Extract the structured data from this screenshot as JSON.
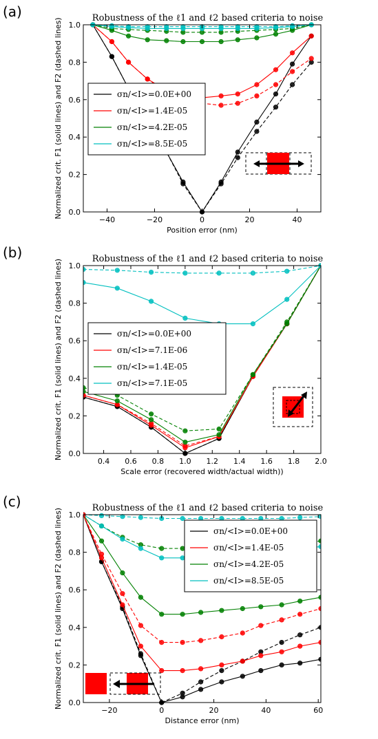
{
  "chart_data": [
    {
      "panel_label": "(a)",
      "type": "line",
      "title": "Robustness of the ℓ1 and ℓ2 based criteria to noise",
      "xlabel": "Position error (nm)",
      "ylabel": "Normalized crit. F1 (solid lines) and F2 (dashed lines)",
      "xlim": [
        -50,
        50
      ],
      "ylim": [
        0,
        1
      ],
      "xticks": [
        -40,
        -20,
        0,
        20,
        40
      ],
      "yticks": [
        0.0,
        0.2,
        0.4,
        0.6,
        0.8,
        1.0
      ],
      "legend_position": "left",
      "x": [
        -46,
        -38,
        -31,
        -23,
        -15,
        -8,
        0,
        8,
        15,
        23,
        31,
        38,
        46
      ],
      "series": [
        {
          "name": "σn/<I>=0.0E+00",
          "color": "#000000",
          "solid": [
            1.0,
            0.83,
            0.66,
            0.49,
            0.32,
            0.16,
            0.0,
            0.16,
            0.32,
            0.48,
            0.63,
            0.79,
            0.94
          ],
          "dashed": [
            1.0,
            0.83,
            0.66,
            0.49,
            0.32,
            0.15,
            0.0,
            0.15,
            0.29,
            0.43,
            0.56,
            0.68,
            0.8
          ]
        },
        {
          "name": "σn/<I>=1.4E-05",
          "color": "#ff0000",
          "solid": [
            1.0,
            0.91,
            0.8,
            0.71,
            0.65,
            0.62,
            0.61,
            0.62,
            0.63,
            0.68,
            0.76,
            0.85,
            0.94
          ],
          "dashed": [
            1.0,
            0.91,
            0.8,
            0.71,
            0.64,
            0.6,
            0.58,
            0.57,
            0.58,
            0.62,
            0.68,
            0.75,
            0.82
          ]
        },
        {
          "name": "σn/<I>=4.2E-05",
          "color": "#008000",
          "solid": [
            1.0,
            0.97,
            0.94,
            0.92,
            0.915,
            0.91,
            0.91,
            0.91,
            0.92,
            0.93,
            0.95,
            0.97,
            1.0
          ],
          "dashed": [
            1.0,
            0.98,
            0.975,
            0.97,
            0.965,
            0.96,
            0.96,
            0.96,
            0.965,
            0.97,
            0.975,
            0.98,
            1.0
          ]
        },
        {
          "name": "σn/<I>=8.5E-05",
          "color": "#00bfbf",
          "solid": [
            1.0,
            0.99,
            0.985,
            0.98,
            0.98,
            0.98,
            0.98,
            0.98,
            0.98,
            0.98,
            0.985,
            0.99,
            1.0
          ],
          "dashed": [
            1.0,
            0.995,
            0.99,
            0.99,
            0.99,
            0.99,
            0.99,
            0.99,
            0.99,
            0.99,
            0.99,
            0.995,
            1.0
          ]
        }
      ]
    },
    {
      "panel_label": "(b)",
      "type": "line",
      "title": "Robustness of the ℓ1 and ℓ2 based criteria to noise",
      "xlabel": "Scale error (recovered width/actual width))",
      "ylabel": "Normalized crit. F1 (solid lines) and F2 (dashed lines)",
      "xlim": [
        0.25,
        2.0
      ],
      "ylim": [
        0,
        1
      ],
      "xticks": [
        0.4,
        0.6,
        0.8,
        1.0,
        1.2,
        1.4,
        1.6,
        1.8,
        2.0
      ],
      "yticks": [
        0.0,
        0.2,
        0.4,
        0.6,
        0.8,
        1.0
      ],
      "legend_position": "center-left",
      "x": [
        0.25,
        0.5,
        0.75,
        1.0,
        1.25,
        1.5,
        1.75,
        2.0
      ],
      "series": [
        {
          "name": "σn/<I>=0.0E+00",
          "color": "#000000",
          "solid": [
            0.3,
            0.25,
            0.14,
            0.0,
            0.08,
            0.41,
            0.69,
            1.0
          ],
          "dashed": [
            0.3,
            0.25,
            0.14,
            0.0,
            0.08,
            0.41,
            0.69,
            1.0
          ]
        },
        {
          "name": "σn/<I>=7.1E-06",
          "color": "#ff0000",
          "solid": [
            0.31,
            0.26,
            0.15,
            0.03,
            0.09,
            0.41,
            0.69,
            1.0
          ],
          "dashed": [
            0.31,
            0.26,
            0.16,
            0.04,
            0.09,
            0.41,
            0.69,
            1.0
          ]
        },
        {
          "name": "σn/<I>=1.4E-05",
          "color": "#008000",
          "solid": [
            0.33,
            0.28,
            0.18,
            0.06,
            0.1,
            0.42,
            0.69,
            1.0
          ],
          "dashed": [
            0.35,
            0.31,
            0.21,
            0.12,
            0.13,
            0.42,
            0.7,
            1.0
          ]
        },
        {
          "name": "σn/<I>=7.1E-05",
          "color": "#00bfbf",
          "solid": [
            0.91,
            0.88,
            0.81,
            0.72,
            0.69,
            0.69,
            0.82,
            1.0
          ],
          "dashed": [
            0.98,
            0.975,
            0.965,
            0.96,
            0.96,
            0.96,
            0.97,
            1.0
          ]
        }
      ]
    },
    {
      "panel_label": "(c)",
      "type": "line",
      "title": "Robustness of the ℓ1 and ℓ2 based criteria to noise",
      "xlabel": "Distance error (nm)",
      "ylabel": "Normalized crit. F1 (solid lines) and F2 (dashed lines)",
      "xlim": [
        -30,
        61
      ],
      "ylim": [
        0,
        1
      ],
      "xticks": [
        -20,
        0,
        20,
        40,
        60
      ],
      "yticks": [
        0.0,
        0.2,
        0.4,
        0.6,
        0.8,
        1.0
      ],
      "legend_position": "upper-right",
      "x": [
        -30,
        -23,
        -15,
        -8,
        0,
        8,
        15,
        23,
        31,
        38,
        46,
        53,
        61
      ],
      "series": [
        {
          "name": "σn/<I>=0.0E+00",
          "color": "#000000",
          "solid": [
            1.0,
            0.75,
            0.5,
            0.25,
            0.0,
            0.03,
            0.07,
            0.11,
            0.14,
            0.17,
            0.2,
            0.21,
            0.23
          ],
          "dashed": [
            1.0,
            0.75,
            0.51,
            0.26,
            0.0,
            0.05,
            0.11,
            0.17,
            0.22,
            0.27,
            0.32,
            0.36,
            0.4
          ]
        },
        {
          "name": "σn/<I>=1.4E-05",
          "color": "#ff0000",
          "solid": [
            1.0,
            0.77,
            0.52,
            0.3,
            0.17,
            0.17,
            0.18,
            0.2,
            0.22,
            0.25,
            0.27,
            0.3,
            0.32
          ]
        },
        {
          "name": "σn/<I>=4.2E-05",
          "color": "#008000",
          "solid": [
            1.0,
            0.86,
            0.69,
            0.56,
            0.47,
            0.47,
            0.48,
            0.49,
            0.5,
            0.51,
            0.52,
            0.54,
            0.56
          ],
          "dashed": [
            1.0,
            0.94,
            0.88,
            0.84,
            0.82,
            0.82,
            0.82,
            0.82,
            0.83,
            0.83,
            0.84,
            0.85,
            0.86
          ]
        },
        {
          "name": "σn/<I>=8.5E-05",
          "color": "#00bfbf",
          "solid": [
            1.0,
            0.94,
            0.87,
            0.82,
            0.77,
            0.77,
            0.78,
            0.79,
            0.8,
            0.8,
            0.81,
            0.82,
            0.83
          ],
          "dashed": [
            1.0,
            0.995,
            0.99,
            0.985,
            0.98,
            0.98,
            0.98,
            0.98,
            0.98,
            0.98,
            0.98,
            0.985,
            0.99
          ]
        },
        {
          "name": "",
          "color": "#ff0000",
          "dashed": [
            1.0,
            0.79,
            0.58,
            0.41,
            0.32,
            0.32,
            0.33,
            0.35,
            0.37,
            0.41,
            0.44,
            0.47,
            0.5
          ]
        }
      ]
    }
  ]
}
